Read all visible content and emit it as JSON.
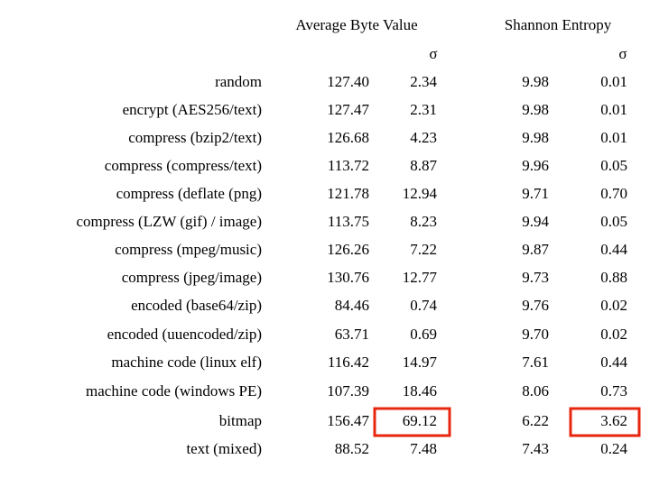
{
  "table": {
    "headers": [
      "Average Byte Value",
      "Shannon Entropy"
    ],
    "subheaders": [
      "σ",
      "σ"
    ],
    "rows": [
      [
        "random",
        "127.40",
        "2.34",
        "9.98",
        "0.01"
      ],
      [
        "encrypt (AES256/text)",
        "127.47",
        "2.31",
        "9.98",
        "0.01"
      ],
      [
        "compress (bzip2/text)",
        "126.68",
        "4.23",
        "9.98",
        "0.01"
      ],
      [
        "compress (compress/text)",
        "113.72",
        "8.87",
        "9.96",
        "0.05"
      ],
      [
        "compress (deflate (png)",
        "121.78",
        "12.94",
        "9.71",
        "0.70"
      ],
      [
        "compress (LZW (gif) / image)",
        "113.75",
        "8.23",
        "9.94",
        "0.05"
      ],
      [
        "compress (mpeg/music)",
        "126.26",
        "7.22",
        "9.87",
        "0.44"
      ],
      [
        "compress (jpeg/image)",
        "130.76",
        "12.77",
        "9.73",
        "0.88"
      ],
      [
        "encoded (base64/zip)",
        "84.46",
        "0.74",
        "9.76",
        "0.02"
      ],
      [
        "encoded (uuencoded/zip)",
        "63.71",
        "0.69",
        "9.70",
        "0.02"
      ],
      [
        "machine code (linux elf)",
        "116.42",
        "14.97",
        "7.61",
        "0.44"
      ],
      [
        "machine code (windows PE)",
        "107.39",
        "18.46",
        "8.06",
        "0.73"
      ],
      [
        "bitmap",
        "156.47",
        "69.12",
        "6.22",
        "3.62"
      ],
      [
        "text (mixed)",
        "88.52",
        "7.48",
        "7.43",
        "0.24"
      ]
    ]
  }
}
